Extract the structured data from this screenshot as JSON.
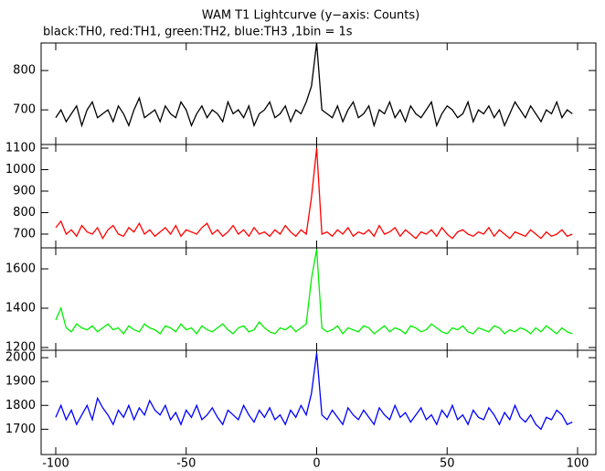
{
  "chart_data": {
    "type": "line",
    "title": "WAM T1 Lightcurve (y−axis: Counts)",
    "subtitle": "black:TH0, red:TH1, green:TH2, blue:TH3 ,1bin = 1s",
    "x": [
      -100,
      -98,
      -96,
      -94,
      -92,
      -90,
      -88,
      -86,
      -84,
      -82,
      -80,
      -78,
      -76,
      -74,
      -72,
      -70,
      -68,
      -66,
      -64,
      -62,
      -60,
      -58,
      -56,
      -54,
      -52,
      -50,
      -48,
      -46,
      -44,
      -42,
      -40,
      -38,
      -36,
      -34,
      -32,
      -30,
      -28,
      -26,
      -24,
      -22,
      -20,
      -18,
      -16,
      -14,
      -12,
      -10,
      -8,
      -6,
      -4,
      -2,
      0,
      2,
      4,
      6,
      8,
      10,
      12,
      14,
      16,
      18,
      20,
      22,
      24,
      26,
      28,
      30,
      32,
      34,
      36,
      38,
      40,
      42,
      44,
      46,
      48,
      50,
      52,
      54,
      56,
      58,
      60,
      62,
      64,
      66,
      68,
      70,
      72,
      74,
      76,
      78,
      80,
      82,
      84,
      86,
      88,
      90,
      92,
      94,
      96,
      98
    ],
    "xlim": [
      -105.6,
      107
    ],
    "xticks": [
      -100,
      -50,
      0,
      50,
      100
    ],
    "series": [
      {
        "name": "TH0",
        "color": "#000000",
        "ylim": [
          612,
          870
        ],
        "yticks": [
          700,
          800
        ],
        "values": [
          680,
          700,
          670,
          690,
          710,
          660,
          700,
          720,
          680,
          690,
          700,
          670,
          710,
          690,
          660,
          700,
          730,
          680,
          690,
          700,
          670,
          710,
          690,
          680,
          720,
          700,
          660,
          690,
          710,
          680,
          700,
          690,
          670,
          720,
          690,
          700,
          680,
          710,
          660,
          690,
          700,
          720,
          680,
          690,
          710,
          670,
          700,
          690,
          720,
          760,
          870,
          700,
          690,
          680,
          710,
          670,
          700,
          720,
          680,
          690,
          710,
          660,
          700,
          690,
          720,
          680,
          700,
          670,
          710,
          690,
          680,
          700,
          720,
          660,
          690,
          710,
          700,
          680,
          690,
          720,
          670,
          700,
          690,
          710,
          680,
          700,
          660,
          690,
          720,
          700,
          680,
          710,
          690,
          670,
          700,
          690,
          720,
          680,
          700,
          690
        ]
      },
      {
        "name": "TH1",
        "color": "#ff0000",
        "ylim": [
          636,
          1117
        ],
        "yticks": [
          700,
          800,
          900,
          1000,
          1100
        ],
        "values": [
          730,
          760,
          700,
          720,
          690,
          740,
          710,
          700,
          730,
          680,
          720,
          740,
          700,
          690,
          730,
          710,
          750,
          700,
          720,
          690,
          710,
          730,
          700,
          740,
          690,
          720,
          710,
          700,
          730,
          750,
          700,
          720,
          690,
          710,
          740,
          700,
          720,
          690,
          730,
          700,
          710,
          690,
          720,
          700,
          740,
          710,
          690,
          720,
          700,
          870,
          1100,
          700,
          710,
          690,
          720,
          700,
          730,
          690,
          710,
          700,
          720,
          690,
          740,
          700,
          710,
          730,
          690,
          720,
          700,
          680,
          710,
          700,
          720,
          690,
          730,
          700,
          680,
          710,
          720,
          700,
          690,
          710,
          700,
          730,
          690,
          720,
          700,
          680,
          710,
          700,
          690,
          720,
          700,
          680,
          710,
          690,
          700,
          720,
          690,
          700
        ]
      },
      {
        "name": "TH2",
        "color": "#00ee00",
        "ylim": [
          1186,
          1707
        ],
        "yticks": [
          1200,
          1400,
          1600
        ],
        "values": [
          1340,
          1400,
          1300,
          1280,
          1320,
          1300,
          1290,
          1310,
          1280,
          1300,
          1320,
          1290,
          1300,
          1270,
          1310,
          1290,
          1280,
          1320,
          1300,
          1290,
          1270,
          1310,
          1300,
          1280,
          1320,
          1290,
          1300,
          1270,
          1310,
          1290,
          1280,
          1300,
          1320,
          1290,
          1270,
          1300,
          1310,
          1280,
          1290,
          1330,
          1300,
          1280,
          1270,
          1300,
          1290,
          1310,
          1280,
          1300,
          1320,
          1550,
          1700,
          1300,
          1280,
          1290,
          1310,
          1270,
          1300,
          1290,
          1280,
          1310,
          1300,
          1270,
          1290,
          1310,
          1280,
          1300,
          1290,
          1270,
          1310,
          1300,
          1280,
          1290,
          1320,
          1300,
          1280,
          1270,
          1300,
          1290,
          1310,
          1280,
          1270,
          1300,
          1290,
          1280,
          1310,
          1300,
          1270,
          1290,
          1280,
          1300,
          1290,
          1270,
          1300,
          1280,
          1310,
          1290,
          1270,
          1300,
          1280,
          1270
        ]
      },
      {
        "name": "TH3",
        "color": "#0000ff",
        "ylim": [
          1594,
          2031
        ],
        "yticks": [
          1700,
          1800,
          1900,
          2000
        ],
        "values": [
          1750,
          1800,
          1740,
          1780,
          1720,
          1760,
          1800,
          1740,
          1830,
          1790,
          1760,
          1720,
          1780,
          1750,
          1800,
          1740,
          1790,
          1760,
          1820,
          1780,
          1760,
          1800,
          1740,
          1770,
          1720,
          1780,
          1750,
          1800,
          1740,
          1760,
          1790,
          1750,
          1720,
          1780,
          1760,
          1740,
          1800,
          1760,
          1730,
          1780,
          1750,
          1790,
          1740,
          1760,
          1720,
          1780,
          1750,
          1800,
          1760,
          1850,
          2020,
          1760,
          1740,
          1780,
          1750,
          1720,
          1790,
          1760,
          1740,
          1780,
          1750,
          1720,
          1790,
          1760,
          1740,
          1800,
          1750,
          1770,
          1730,
          1760,
          1790,
          1740,
          1760,
          1720,
          1780,
          1750,
          1800,
          1740,
          1760,
          1720,
          1780,
          1750,
          1740,
          1790,
          1760,
          1720,
          1770,
          1740,
          1800,
          1750,
          1730,
          1760,
          1720,
          1700,
          1750,
          1740,
          1780,
          1760,
          1720,
          1730
        ]
      }
    ]
  }
}
